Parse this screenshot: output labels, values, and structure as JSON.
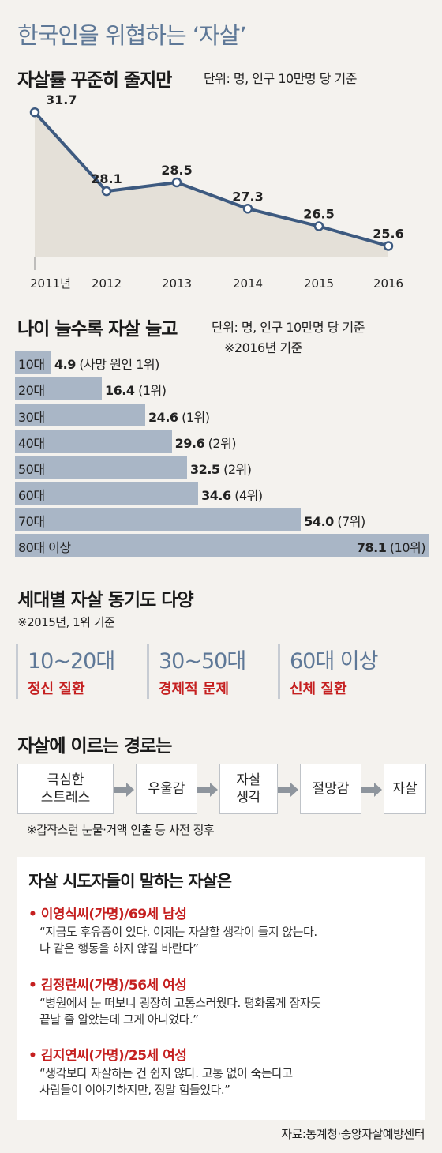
{
  "title": "한국인을 위협하는 ‘자살’",
  "rate_chart": {
    "heading": "자살률 꾸준히 줄지만",
    "unit": "단위: 명, 인구 10만명 당 기준"
  },
  "age_chart": {
    "heading": "나이 늘수록 자살 늘고",
    "unit": "단위: 명, 인구 10만명 당 기준",
    "note": "※2016년 기준"
  },
  "chart_data": [
    {
      "type": "area",
      "title": "자살률 꾸준히 줄지만",
      "x": [
        "2011년",
        "2012",
        "2013",
        "2014",
        "2015",
        "2016"
      ],
      "values": [
        31.7,
        28.1,
        28.5,
        27.3,
        26.5,
        25.6
      ],
      "ylim": [
        24.5,
        32.5
      ],
      "colors": {
        "fill": "#e4e0d8",
        "line": "#3d5a80"
      }
    },
    {
      "type": "bar",
      "title": "나이 늘수록 자살 늘고",
      "categories": [
        "10대",
        "20대",
        "30대",
        "40대",
        "50대",
        "60대",
        "70대",
        "80대 이상"
      ],
      "values": [
        4.9,
        16.4,
        24.6,
        29.6,
        32.5,
        34.6,
        54.0,
        78.1
      ],
      "value_labels": [
        "4.9",
        "16.4",
        "24.6",
        "29.6",
        "32.5",
        "34.6",
        "54.0",
        "78.1"
      ],
      "rank_labels": [
        "(사망 원인 1위)",
        "(1위)",
        "(1위)",
        "(2위)",
        "(2위)",
        "(4위)",
        "(7위)",
        "(10위)"
      ],
      "xlim": [
        0,
        78.1
      ],
      "colors": {
        "bar": "#a9b6c6"
      }
    }
  ],
  "motives": {
    "heading": "세대별 자살 동기도 다양",
    "note": "※2015년, 1위 기준",
    "items": [
      {
        "age": "10~20대",
        "cause": "정신 질환"
      },
      {
        "age": "30~50대",
        "cause": "경제적 문제"
      },
      {
        "age": "60대 이상",
        "cause": "신체 질환"
      }
    ]
  },
  "path": {
    "heading": "자살에 이르는 경로는",
    "steps": [
      "극심한\n스트레스",
      "우울감",
      "자살\n생각",
      "절망감",
      "자살"
    ],
    "note": "※갑작스런 눈물·거액 인출 등 사전 징후"
  },
  "testimonies": {
    "heading": "자살 시도자들이 말하는 자살은",
    "items": [
      {
        "who": "• 이영식씨(가명)/69세 남성",
        "quote": "“지금도 후유증이 있다. 이제는 자살할 생각이 들지 않는다.\n나 같은 행동을 하지 않길 바란다”"
      },
      {
        "who": "• 김정란씨(가명)/56세 여성",
        "quote": "“병원에서 눈 떠보니 굉장히 고통스러웠다. 평화롭게 잠자듯\n끝날 줄 알았는데 그게 아니었다.”"
      },
      {
        "who": "• 김지연씨(가명)/25세 여성",
        "quote": "“생각보다 자살하는 건 쉽지 않다. 고통 없이 죽는다고\n사람들이 이야기하지만, 정말 힘들었다.”"
      }
    ]
  },
  "source": "자료:통계청·중앙자살예방센터"
}
